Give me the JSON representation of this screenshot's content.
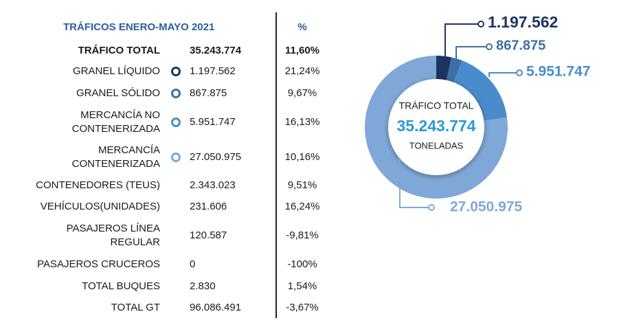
{
  "table": {
    "title": "TRÁFICOS ENERO-MAYO 2021",
    "pct_header": "%",
    "rows": [
      [
        "TRÁFICO TOTAL",
        "35.243.774",
        "11,60%"
      ],
      [
        "GRANEL LÍQUIDO",
        "1.197.562",
        "21,24%"
      ],
      [
        "GRANEL SÓLIDO",
        "867.875",
        "9,67%"
      ],
      [
        "MERCANCÍA NO\nCONTENERIZADA",
        "5.951.747",
        "16,13%"
      ],
      [
        "MERCANCÍA\nCONTENERIZADA",
        "27.050.975",
        "10,16%"
      ],
      [
        "CONTENEDORES (TEUS)",
        "2.343.023",
        "9,51%"
      ],
      [
        "VEHÍCULOS(UNIDADES)",
        "231.606",
        "16,24%"
      ],
      [
        "PASAJEROS LÍNEA\nREGULAR",
        "120.587",
        "-9,81%"
      ],
      [
        "PASAJEROS CRUCEROS",
        "0",
        "-100%"
      ],
      [
        "TOTAL BUQUES",
        "2.830",
        "1,54%"
      ],
      [
        "TOTAL GT",
        "96.086.491",
        "-3,67%"
      ]
    ]
  },
  "chart_data": {
    "type": "pie",
    "donut": true,
    "center_title": "TRÁFICO TOTAL",
    "center_value": "35.243.774",
    "center_subtitle": "TONELADAS",
    "values": [
      1197562,
      867875,
      5951747,
      27050975
    ],
    "value_labels": [
      "1.197.562",
      "867.875",
      "5.951.747",
      "27.050.975"
    ],
    "colors": [
      "#1d3461",
      "#3f6ea3",
      "#4a8ccb",
      "#7fa8d8"
    ]
  }
}
